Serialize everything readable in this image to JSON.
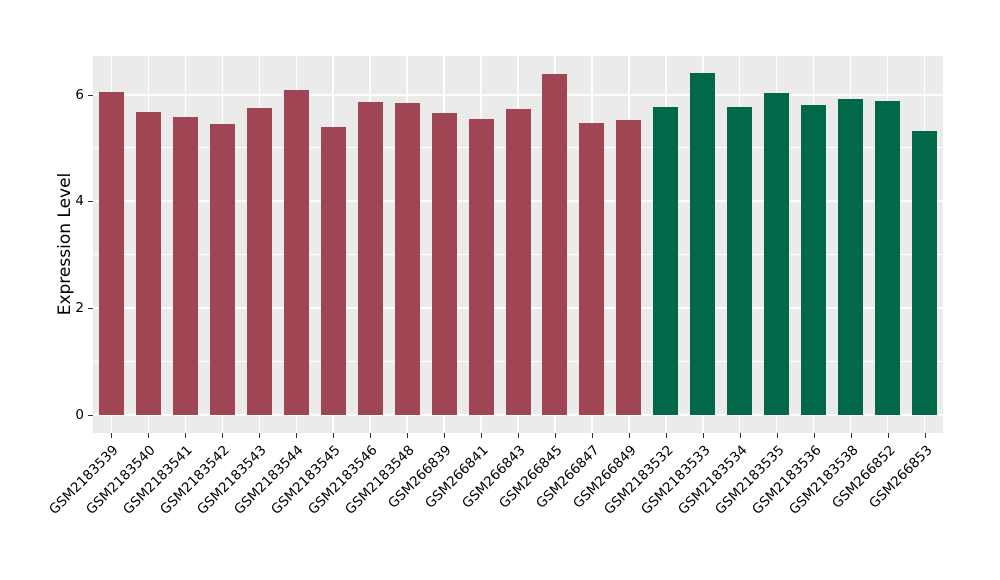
{
  "figure": {
    "background": "#ffffff",
    "panel_background": "#EBEBEB",
    "grid_color": "#FFFFFF",
    "text_color": "#000000",
    "tick_color": "#333333"
  },
  "chart_data": {
    "type": "bar",
    "title": "",
    "xlabel": "",
    "ylabel": "Expression Level",
    "ylim": [
      -0.33,
      6.72
    ],
    "yticks": [
      0,
      2,
      4,
      6
    ],
    "yticks_minor": [
      1,
      3,
      5
    ],
    "grid": "white major+minor horizontal lines, white vertical line at each category center, gray panel",
    "legend_position": "none",
    "categories": [
      "GSM2183539",
      "GSM2183540",
      "GSM2183541",
      "GSM2183542",
      "GSM2183543",
      "GSM2183544",
      "GSM2183545",
      "GSM2183546",
      "GSM2183548",
      "GSM266839",
      "GSM266841",
      "GSM266843",
      "GSM266845",
      "GSM266847",
      "GSM266849",
      "GSM2183532",
      "GSM2183533",
      "GSM2183534",
      "GSM2183535",
      "GSM2183536",
      "GSM2183538",
      "GSM266852",
      "GSM266853"
    ],
    "values": [
      6.05,
      5.68,
      5.57,
      5.45,
      5.75,
      6.09,
      5.39,
      5.86,
      5.85,
      5.66,
      5.55,
      5.73,
      6.38,
      5.46,
      5.53,
      5.77,
      6.41,
      5.76,
      6.03,
      5.8,
      5.92,
      5.88,
      5.31
    ],
    "color_groups": [
      {
        "name": "group-1",
        "color": "#A04554",
        "start_index": 0,
        "end_index": 14
      },
      {
        "name": "group-2",
        "color": "#01684A",
        "start_index": 15,
        "end_index": 22
      }
    ]
  }
}
